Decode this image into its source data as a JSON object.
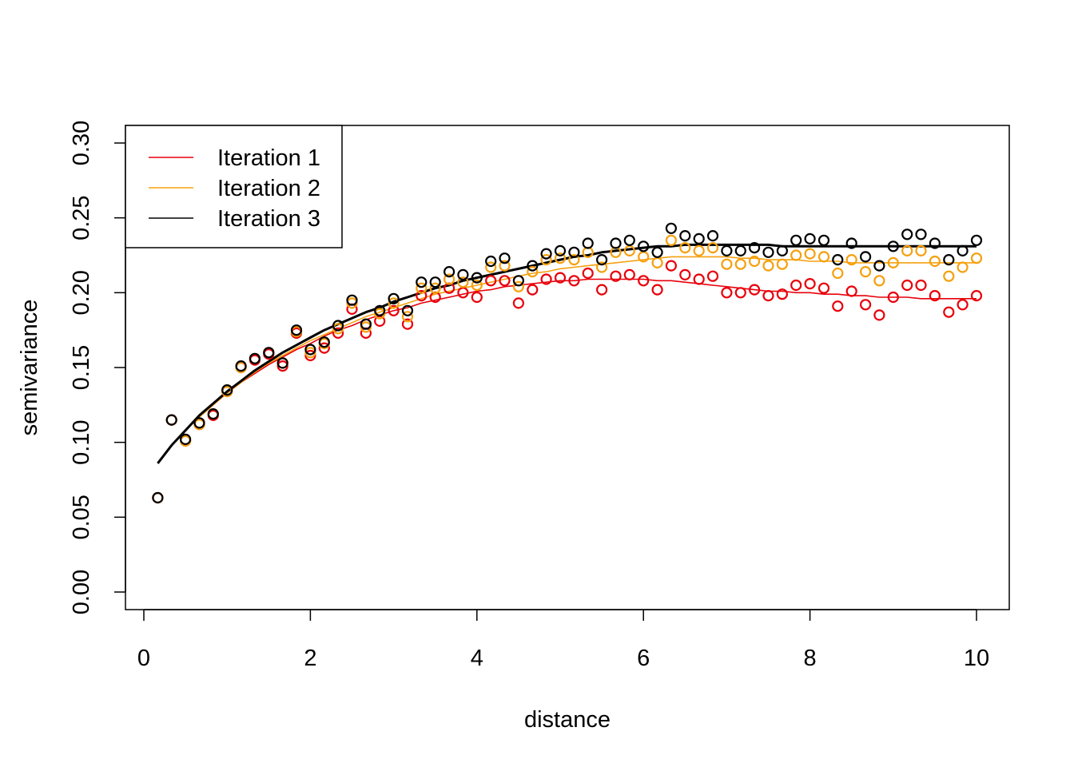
{
  "chart_data": {
    "type": "scatter",
    "title": "",
    "xlabel": "distance",
    "ylabel": "semivariance",
    "xlim": [
      0,
      10
    ],
    "ylim": [
      0,
      0.3
    ],
    "xticks": [
      "0",
      "2",
      "4",
      "6",
      "8",
      "10"
    ],
    "xtick_values": [
      0,
      2,
      4,
      6,
      8,
      10
    ],
    "yticks": [
      "0.00",
      "0.05",
      "0.10",
      "0.15",
      "0.20",
      "0.25",
      "0.30"
    ],
    "ytick_values": [
      0,
      0.05,
      0.1,
      0.15,
      0.2,
      0.25,
      0.3
    ],
    "grid": false,
    "legend_position": "top-left",
    "x": [
      0.167,
      0.333,
      0.5,
      0.667,
      0.833,
      1.0,
      1.167,
      1.333,
      1.5,
      1.667,
      1.833,
      2.0,
      2.167,
      2.333,
      2.5,
      2.667,
      2.833,
      3.0,
      3.167,
      3.333,
      3.5,
      3.667,
      3.833,
      4.0,
      4.167,
      4.333,
      4.5,
      4.667,
      4.833,
      5.0,
      5.167,
      5.333,
      5.5,
      5.667,
      5.833,
      6.0,
      6.167,
      6.333,
      6.5,
      6.667,
      6.833,
      7.0,
      7.167,
      7.333,
      7.5,
      7.667,
      7.833,
      8.0,
      8.167,
      8.333,
      8.5,
      8.667,
      8.833,
      9.0,
      9.167,
      9.333,
      9.5,
      9.667,
      9.833,
      10.0
    ],
    "series": [
      {
        "name": "Iteration 1",
        "color": "#e8000b",
        "points": [
          0.063,
          0.115,
          0.101,
          0.112,
          0.118,
          0.134,
          0.15,
          0.155,
          0.159,
          0.151,
          0.173,
          0.158,
          0.163,
          0.173,
          0.189,
          0.173,
          0.181,
          0.188,
          0.179,
          0.198,
          0.197,
          0.203,
          0.2,
          0.197,
          0.208,
          0.208,
          0.193,
          0.202,
          0.209,
          0.21,
          0.208,
          0.213,
          0.202,
          0.211,
          0.212,
          0.208,
          0.202,
          0.218,
          0.212,
          0.209,
          0.211,
          0.2,
          0.2,
          0.202,
          0.198,
          0.199,
          0.205,
          0.206,
          0.203,
          0.191,
          0.201,
          0.192,
          0.185,
          0.197,
          0.205,
          0.205,
          0.198,
          0.187,
          0.192,
          0.198
        ],
        "curve": [
          0.086,
          0.098,
          0.108,
          0.117,
          0.125,
          0.133,
          0.14,
          0.146,
          0.152,
          0.157,
          0.162,
          0.166,
          0.171,
          0.175,
          0.178,
          0.182,
          0.185,
          0.188,
          0.19,
          0.193,
          0.195,
          0.197,
          0.199,
          0.201,
          0.202,
          0.204,
          0.205,
          0.206,
          0.207,
          0.208,
          0.208,
          0.209,
          0.209,
          0.209,
          0.209,
          0.209,
          0.208,
          0.208,
          0.207,
          0.206,
          0.205,
          0.204,
          0.203,
          0.202,
          0.201,
          0.201,
          0.2,
          0.2,
          0.199,
          0.199,
          0.198,
          0.198,
          0.197,
          0.197,
          0.197,
          0.196,
          0.196,
          0.196,
          0.196,
          0.196
        ]
      },
      {
        "name": "Iteration 2",
        "color": "#f5a00f",
        "points": [
          0.063,
          0.115,
          0.101,
          0.112,
          0.119,
          0.134,
          0.15,
          0.156,
          0.16,
          0.153,
          0.174,
          0.16,
          0.166,
          0.176,
          0.193,
          0.177,
          0.186,
          0.193,
          0.184,
          0.203,
          0.203,
          0.209,
          0.207,
          0.205,
          0.217,
          0.218,
          0.204,
          0.214,
          0.222,
          0.223,
          0.222,
          0.227,
          0.217,
          0.227,
          0.228,
          0.224,
          0.22,
          0.235,
          0.23,
          0.228,
          0.23,
          0.219,
          0.219,
          0.221,
          0.218,
          0.219,
          0.225,
          0.226,
          0.224,
          0.213,
          0.222,
          0.214,
          0.208,
          0.22,
          0.228,
          0.228,
          0.221,
          0.211,
          0.217,
          0.223
        ],
        "curve": [
          0.086,
          0.098,
          0.108,
          0.117,
          0.125,
          0.133,
          0.14,
          0.147,
          0.153,
          0.158,
          0.163,
          0.168,
          0.172,
          0.176,
          0.18,
          0.184,
          0.187,
          0.19,
          0.193,
          0.196,
          0.199,
          0.201,
          0.203,
          0.205,
          0.207,
          0.209,
          0.211,
          0.213,
          0.214,
          0.216,
          0.217,
          0.218,
          0.219,
          0.22,
          0.221,
          0.222,
          0.223,
          0.224,
          0.224,
          0.224,
          0.224,
          0.224,
          0.223,
          0.223,
          0.222,
          0.222,
          0.222,
          0.221,
          0.221,
          0.221,
          0.22,
          0.22,
          0.22,
          0.22,
          0.22,
          0.22,
          0.22,
          0.22,
          0.22,
          0.22
        ]
      },
      {
        "name": "Iteration 3",
        "color": "#000000",
        "points": [
          0.063,
          0.115,
          0.102,
          0.113,
          0.119,
          0.135,
          0.151,
          0.156,
          0.16,
          0.153,
          0.175,
          0.162,
          0.167,
          0.178,
          0.195,
          0.179,
          0.188,
          0.196,
          0.188,
          0.207,
          0.207,
          0.214,
          0.212,
          0.21,
          0.221,
          0.223,
          0.208,
          0.218,
          0.226,
          0.228,
          0.227,
          0.233,
          0.222,
          0.233,
          0.235,
          0.231,
          0.227,
          0.243,
          0.238,
          0.236,
          0.238,
          0.228,
          0.228,
          0.23,
          0.227,
          0.228,
          0.235,
          0.236,
          0.235,
          0.222,
          0.233,
          0.224,
          0.218,
          0.231,
          0.239,
          0.239,
          0.233,
          0.222,
          0.228,
          0.235
        ],
        "curve": [
          0.086,
          0.098,
          0.108,
          0.118,
          0.126,
          0.134,
          0.141,
          0.148,
          0.154,
          0.16,
          0.165,
          0.17,
          0.175,
          0.179,
          0.183,
          0.187,
          0.19,
          0.194,
          0.197,
          0.2,
          0.203,
          0.205,
          0.208,
          0.21,
          0.212,
          0.214,
          0.216,
          0.218,
          0.22,
          0.222,
          0.224,
          0.225,
          0.227,
          0.228,
          0.229,
          0.23,
          0.231,
          0.231,
          0.232,
          0.232,
          0.232,
          0.232,
          0.232,
          0.232,
          0.232,
          0.231,
          0.231,
          0.231,
          0.231,
          0.231,
          0.231,
          0.231,
          0.231,
          0.231,
          0.231,
          0.231,
          0.231,
          0.231,
          0.231,
          0.231
        ]
      }
    ]
  }
}
